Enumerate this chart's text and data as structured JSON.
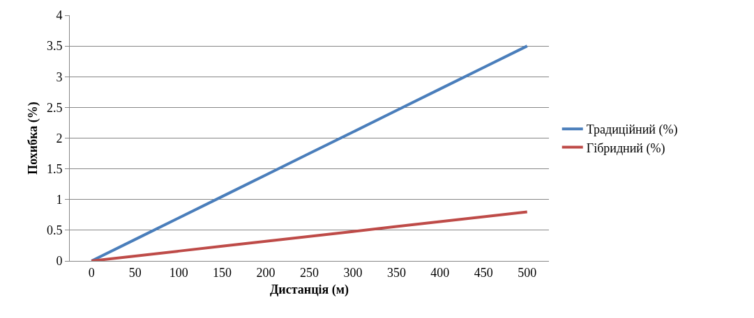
{
  "chart_data": {
    "type": "line",
    "xlabel": "Дистанція (м)",
    "ylabel": "Похибка (%)",
    "categories": [
      "0",
      "50",
      "100",
      "150",
      "200",
      "250",
      "300",
      "350",
      "400",
      "450",
      "500"
    ],
    "series": [
      {
        "name": "Традиційний (%)",
        "color": "#4a7ebb",
        "values": [
          0,
          0.35,
          0.7,
          1.05,
          1.4,
          1.75,
          2.1,
          2.45,
          2.8,
          3.15,
          3.5
        ]
      },
      {
        "name": "Гібридний (%)",
        "color": "#be4b48",
        "values": [
          0,
          0.08,
          0.16,
          0.24,
          0.32,
          0.4,
          0.48,
          0.56,
          0.64,
          0.72,
          0.8
        ]
      }
    ],
    "ylim": [
      0,
      4
    ],
    "yticks": [
      0,
      0.5,
      1,
      1.5,
      2,
      2.5,
      3,
      3.5,
      4
    ],
    "grid": "y",
    "legend": "right",
    "marker": "none",
    "line_style": "solid"
  }
}
